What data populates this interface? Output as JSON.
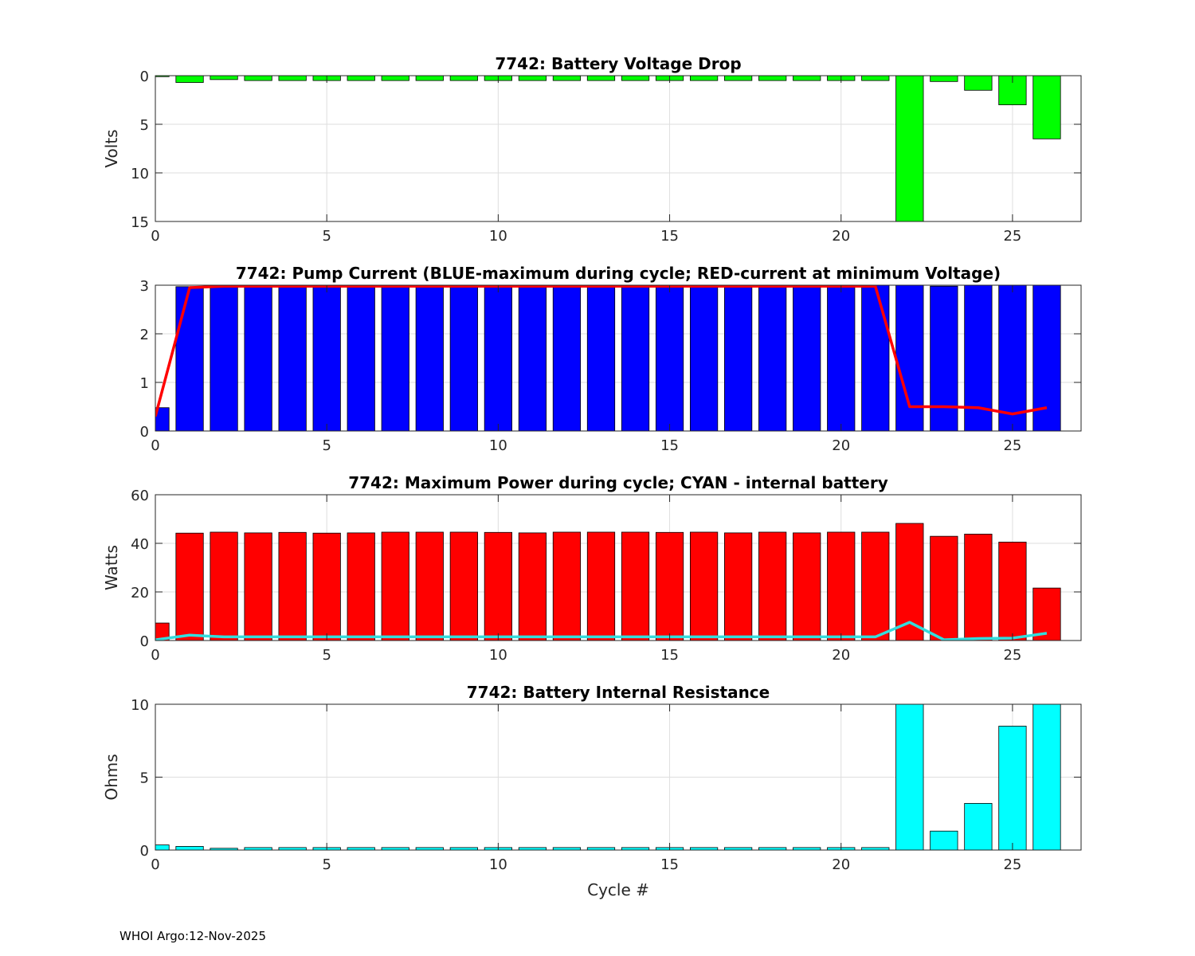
{
  "footer": "WHOI Argo:12-Nov-2025",
  "chart_data": [
    {
      "type": "bar",
      "title": "7742: Battery Voltage Drop",
      "xlabel": "",
      "ylabel": "Volts",
      "xlim": [
        0,
        27
      ],
      "ylim": [
        0,
        15
      ],
      "y_reversed": true,
      "xticks": [
        0,
        5,
        10,
        15,
        20,
        25
      ],
      "yticks": [
        0,
        5,
        10,
        15
      ],
      "grid": true,
      "x": [
        0,
        1,
        2,
        3,
        4,
        5,
        6,
        7,
        8,
        9,
        10,
        11,
        12,
        13,
        14,
        15,
        16,
        17,
        18,
        19,
        20,
        21,
        22,
        23,
        24,
        25,
        26
      ],
      "series": [
        {
          "name": "Voltage drop",
          "kind": "bar",
          "color": "#00ff00",
          "values": [
            0.1,
            0.7,
            0.4,
            0.5,
            0.5,
            0.5,
            0.5,
            0.5,
            0.5,
            0.5,
            0.5,
            0.5,
            0.5,
            0.5,
            0.5,
            0.5,
            0.5,
            0.5,
            0.5,
            0.5,
            0.5,
            0.5,
            15,
            0.6,
            1.5,
            3.0,
            6.5
          ]
        }
      ]
    },
    {
      "type": "bar",
      "title": "7742: Pump Current (BLUE-maximum during cycle; RED-current at minimum Voltage)",
      "xlabel": "",
      "ylabel": "",
      "xlim": [
        0,
        27
      ],
      "ylim": [
        0,
        3
      ],
      "y_reversed": false,
      "xticks": [
        0,
        5,
        10,
        15,
        20,
        25
      ],
      "yticks": [
        0,
        1,
        2,
        3
      ],
      "grid": true,
      "x": [
        0,
        1,
        2,
        3,
        4,
        5,
        6,
        7,
        8,
        9,
        10,
        11,
        12,
        13,
        14,
        15,
        16,
        17,
        18,
        19,
        20,
        21,
        22,
        23,
        24,
        25,
        26
      ],
      "series": [
        {
          "name": "maximum during cycle",
          "kind": "bar",
          "color": "#0000ff",
          "values": [
            0.48,
            2.97,
            3.0,
            2.98,
            2.98,
            2.98,
            2.98,
            3.0,
            3.0,
            2.99,
            3.0,
            2.99,
            3.0,
            3.0,
            3.0,
            3.02,
            2.99,
            3.0,
            2.99,
            2.98,
            3.0,
            3.0,
            3.05,
            2.98,
            3.03,
            3.03,
            3.06
          ]
        },
        {
          "name": "current at minimum Voltage",
          "kind": "line",
          "color": "#ff0000",
          "values": [
            0.3,
            2.95,
            2.98,
            2.98,
            2.98,
            2.98,
            2.98,
            2.98,
            2.98,
            2.98,
            2.98,
            2.98,
            2.98,
            2.98,
            2.98,
            2.98,
            2.98,
            2.98,
            2.98,
            2.98,
            2.98,
            2.98,
            0.5,
            0.5,
            0.48,
            0.35,
            0.48
          ]
        }
      ]
    },
    {
      "type": "bar",
      "title": "7742: Maximum Power during cycle; CYAN - internal battery",
      "xlabel": "",
      "ylabel": "Watts",
      "xlim": [
        0,
        27
      ],
      "ylim": [
        0,
        60
      ],
      "y_reversed": false,
      "xticks": [
        0,
        5,
        10,
        15,
        20,
        25
      ],
      "yticks": [
        0,
        20,
        40,
        60
      ],
      "grid": true,
      "x": [
        0,
        1,
        2,
        3,
        4,
        5,
        6,
        7,
        8,
        9,
        10,
        11,
        12,
        13,
        14,
        15,
        16,
        17,
        18,
        19,
        20,
        21,
        22,
        23,
        24,
        25,
        26
      ],
      "series": [
        {
          "name": "Maximum Power",
          "kind": "bar",
          "color": "#ff0000",
          "values": [
            7.2,
            44.2,
            44.6,
            44.3,
            44.5,
            44.2,
            44.3,
            44.6,
            44.6,
            44.6,
            44.5,
            44.3,
            44.6,
            44.6,
            44.6,
            44.5,
            44.6,
            44.3,
            44.6,
            44.3,
            44.6,
            44.6,
            48.2,
            42.9,
            43.8,
            40.5,
            21.6
          ]
        },
        {
          "name": "internal battery",
          "kind": "line",
          "color": "#33dddd",
          "values": [
            0.3,
            2.2,
            1.5,
            1.5,
            1.5,
            1.5,
            1.5,
            1.5,
            1.5,
            1.5,
            1.5,
            1.5,
            1.5,
            1.5,
            1.5,
            1.5,
            1.5,
            1.5,
            1.5,
            1.5,
            1.5,
            1.5,
            7.5,
            0.3,
            0.8,
            1.0,
            3.0
          ]
        }
      ]
    },
    {
      "type": "bar",
      "title": "7742: Battery Internal Resistance",
      "xlabel": "Cycle #",
      "ylabel": "Ohms",
      "xlim": [
        0,
        27
      ],
      "ylim": [
        0,
        10
      ],
      "y_reversed": false,
      "xticks": [
        0,
        5,
        10,
        15,
        20,
        25
      ],
      "yticks": [
        0,
        5,
        10
      ],
      "grid": true,
      "x": [
        0,
        1,
        2,
        3,
        4,
        5,
        6,
        7,
        8,
        9,
        10,
        11,
        12,
        13,
        14,
        15,
        16,
        17,
        18,
        19,
        20,
        21,
        22,
        23,
        24,
        25,
        26
      ],
      "series": [
        {
          "name": "Internal Resistance",
          "kind": "bar",
          "color": "#00ffff",
          "values": [
            0.35,
            0.25,
            0.12,
            0.17,
            0.17,
            0.17,
            0.17,
            0.17,
            0.17,
            0.17,
            0.17,
            0.17,
            0.17,
            0.17,
            0.17,
            0.17,
            0.17,
            0.17,
            0.17,
            0.17,
            0.17,
            0.17,
            10,
            1.3,
            3.2,
            8.5,
            10
          ]
        }
      ]
    }
  ]
}
